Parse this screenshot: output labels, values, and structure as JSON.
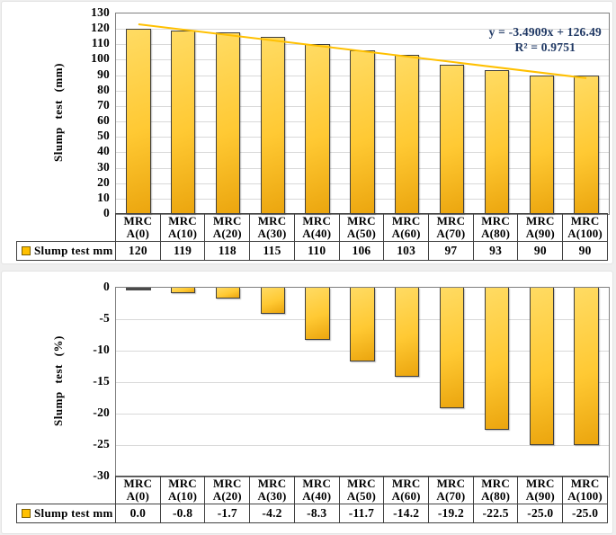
{
  "colors": {
    "bar_fill_light": "#FFDB63",
    "bar_fill_mid": "#FFC933",
    "bar_fill_dark": "#EBA50E",
    "bar_border": "#3F3F3F",
    "gridline": "#D9D9D9",
    "plot_border": "#7F7F7F",
    "trendline": "#FFC000",
    "annotation_text": "#1F3864",
    "table_border": "#404040",
    "legend_swatch_fill": "#FFC000",
    "legend_swatch_border": "#7F6000",
    "panel_background": "#FFFFFF",
    "page_background": "#EFEFEF"
  },
  "chart_data": [
    {
      "type": "bar",
      "title": "",
      "ylabel": "Slump test (mm)",
      "xlabel": "",
      "legend_label": "Slump test mm",
      "legend_position": "bottom-left-table",
      "grid": true,
      "categories": [
        "MRC A(0)",
        "MRC A(10)",
        "MRC A(20)",
        "MRC A(30)",
        "MRC A(40)",
        "MRC A(50)",
        "MRC A(60)",
        "MRC A(70)",
        "MRC A(80)",
        "MRC A(90)",
        "MRC A(100)"
      ],
      "values": [
        120,
        119,
        118,
        115,
        110,
        106,
        103,
        97,
        93,
        90,
        90
      ],
      "value_labels": [
        "120",
        "119",
        "118",
        "115",
        "110",
        "106",
        "103",
        "97",
        "93",
        "90",
        "90"
      ],
      "ylim": [
        0,
        130
      ],
      "ytick_step": 10,
      "yticks": [
        "130",
        "120",
        "110",
        "100",
        "90",
        "80",
        "70",
        "60",
        "50",
        "40",
        "30",
        "20",
        "10",
        "0"
      ],
      "bar_anchor": "bottom",
      "trendline": {
        "equation": "y = -3.4909x + 126.49",
        "r_squared": "R² = 0.9751",
        "start_value": 123.0,
        "end_value": 88.1,
        "color": "#FFC000"
      }
    },
    {
      "type": "bar",
      "title": "",
      "ylabel": "Slump test (%)",
      "xlabel": "",
      "legend_label": "Slump test mm",
      "legend_position": "bottom-left-table",
      "grid": true,
      "categories": [
        "MRC A(0)",
        "MRC A(10)",
        "MRC A(20)",
        "MRC A(30)",
        "MRC A(40)",
        "MRC A(50)",
        "MRC A(60)",
        "MRC A(70)",
        "MRC A(80)",
        "MRC A(90)",
        "MRC A(100)"
      ],
      "values": [
        0.0,
        -0.8,
        -1.7,
        -4.2,
        -8.3,
        -11.7,
        -14.2,
        -19.2,
        -22.5,
        -25.0,
        -25.0
      ],
      "value_labels": [
        "0.0",
        "-0.8",
        "-1.7",
        "-4.2",
        "-8.3",
        "-11.7",
        "-14.2",
        "-19.2",
        "-22.5",
        "-25.0",
        "-25.0"
      ],
      "ylim": [
        -30,
        0
      ],
      "ytick_step": 5,
      "yticks": [
        "0",
        "-5",
        "-10",
        "-15",
        "-20",
        "-25",
        "-30"
      ],
      "bar_anchor": "top",
      "trendline": null
    }
  ]
}
